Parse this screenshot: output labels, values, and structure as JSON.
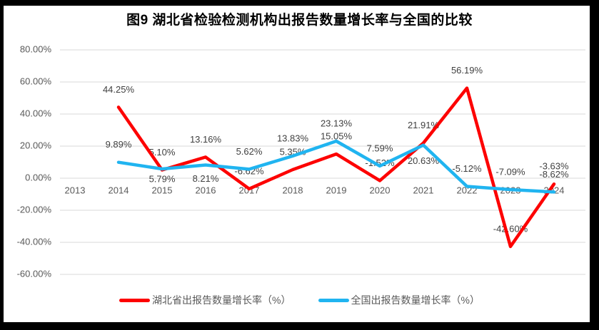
{
  "chart_data": {
    "type": "line",
    "title": "图9 湖北省检验检测机构出报告数量增长率与全国的比较",
    "categories": [
      "2013",
      "2014",
      "2015",
      "2016",
      "2017",
      "2018",
      "2019",
      "2020",
      "2021",
      "2022",
      "2023",
      "2024"
    ],
    "series": [
      {
        "name": "湖北省出报告数量增长率（%）",
        "color": "#fd0000",
        "values": [
          null,
          44.25,
          5.1,
          13.16,
          -6.62,
          5.35,
          15.05,
          -1.52,
          21.91,
          56.19,
          -42.6,
          -3.63
        ],
        "labels": [
          "",
          "44.25%",
          "5.10%",
          "13.16%",
          "-6.62%",
          "5.35%",
          "15.05%",
          "-1.52%",
          "21.91%",
          "56.19%",
          "-42.60%",
          "-3.63%"
        ]
      },
      {
        "name": "全国出报告数量增长率（%）",
        "color": "#20b4f0",
        "values": [
          null,
          9.89,
          5.79,
          8.21,
          5.62,
          13.83,
          23.13,
          7.59,
          20.63,
          -5.12,
          -7.09,
          -8.62
        ],
        "labels": [
          "",
          "9.89%",
          "5.79%",
          "8.21%",
          "5.62%",
          "13.83%",
          "23.13%",
          "7.59%",
          "20.63%",
          "-5.12%",
          "-7.09%",
          "-8.62%"
        ]
      }
    ],
    "ylim": [
      -60,
      80
    ],
    "ytick_step": 20,
    "yticks": [
      "80.00%",
      "60.00%",
      "40.00%",
      "20.00%",
      "0.00%",
      "-20.00%",
      "-40.00%",
      "-60.00%"
    ],
    "grid": true,
    "legend_position": "bottom",
    "label_dy_default": -24,
    "label_dy_overrides": [
      {},
      {
        "2": 15,
        "3": 20,
        "8": 23
      }
    ],
    "colors": {
      "grid": "#d9d9d9",
      "tick_text": "#595959",
      "year_text": "#595959",
      "data_label": "#404040",
      "title": "#000000",
      "frame": "#000000"
    }
  }
}
